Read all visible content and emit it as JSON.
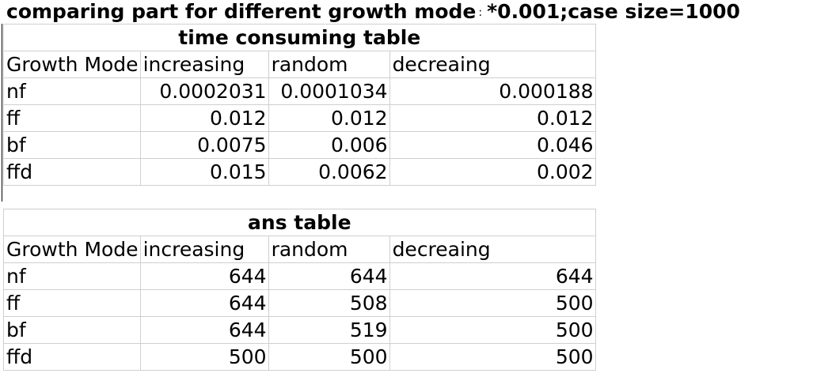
{
  "heading": {
    "left": "comparing part for different growth mode",
    "separator": ":",
    "right": "*0.001;case size=1000"
  },
  "time_table": {
    "title": "time consuming table",
    "headers": [
      "Growth Mode",
      "increasing",
      "random",
      "decreaing"
    ],
    "rows": [
      [
        "nf",
        "0.0002031",
        "0.0001034",
        "0.000188"
      ],
      [
        "ff",
        "0.012",
        "0.012",
        "0.012"
      ],
      [
        "bf",
        "0.0075",
        "0.006",
        "0.046"
      ],
      [
        "ffd",
        "0.015",
        "0.0062",
        "0.002"
      ]
    ]
  },
  "ans_table": {
    "title": "ans table",
    "headers": [
      "Growth Mode",
      "increasing",
      "random",
      "decreaing"
    ],
    "rows": [
      [
        "nf",
        "644",
        "644",
        "644"
      ],
      [
        "ff",
        "644",
        "508",
        "500"
      ],
      [
        "bf",
        "644",
        "519",
        "500"
      ],
      [
        "ffd",
        "500",
        "500",
        "500"
      ]
    ]
  }
}
